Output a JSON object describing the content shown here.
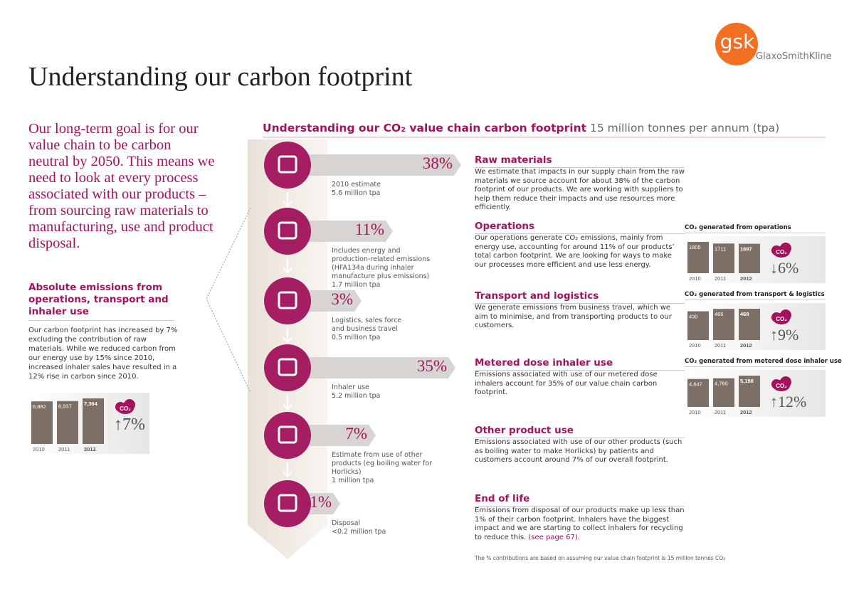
{
  "logo": {
    "mark": "gsk",
    "name": "GlaxoSmithKline"
  },
  "title": "Understanding our carbon footprint",
  "intro": "Our long-term goal is for our value chain to be carbon neutral by 2050. This means we need to look at every process associated with our products – from sourcing raw materials to manufacturing, use and product disposal.",
  "absolute": {
    "heading": "Absolute emissions from operations, transport and inhaler use",
    "body": "Our carbon footprint has increased by 7% excluding the contribution of raw materials. While we reduced carbon from our energy use by 15% since 2010, increased inhaler sales have resulted in a 12% rise in carbon since 2010.",
    "chart": {
      "years": [
        "2010",
        "2011",
        "2012"
      ],
      "values": [
        6882,
        6937,
        7364
      ],
      "value_labels": [
        "6,882",
        "6,937",
        "7,364"
      ],
      "badge": "CO₂",
      "change": "↑7%"
    }
  },
  "value_chain": {
    "title": "Understanding our CO₂ value chain carbon footprint",
    "subtitle": "15 million tonnes per annum (tpa)",
    "steps": [
      {
        "pct": "38%",
        "note": "2010 estimate\n5.6 million tpa",
        "heading": "Raw materials",
        "body": "We estimate that impacts in our supply chain from the raw materials we source account for about 38% of the carbon footprint of our products. We are working with suppliers to help them reduce their impacts and use resources more efficiently."
      },
      {
        "pct": "11%",
        "note": "Includes energy and production-related emissions (HFA134a during inhaler manufacture plus emissions)\n1.7 million tpa",
        "heading": "Operations",
        "body": "Our operations generate CO₂ emissions, mainly from energy use, accounting for around 11% of our products’ total carbon footprint. We are looking for ways to make our processes more efficient and use less energy."
      },
      {
        "pct": "3%",
        "note": "Logistics, sales force\nand business travel\n0.5 million tpa",
        "heading": "Transport and logistics",
        "body": "We generate emissions from business travel, which we aim to minimise, and from transporting products to our customers."
      },
      {
        "pct": "35%",
        "note": "Inhaler use\n5.2 million tpa",
        "heading": "Metered dose inhaler use",
        "body": "Emissions associated with use of our metered dose inhalers account for 35% of our value chain carbon footprint."
      },
      {
        "pct": "7%",
        "note": "Estimate from use of other products (eg boiling water for Horlicks)\n1 million tpa",
        "heading": "Other product use",
        "body": "Emissions associated with use of our other products (such as boiling water to make Horlicks) by patients and customers account around 7% of our overall footprint."
      },
      {
        "pct": "<1%",
        "note": "Disposal\n<0.2 million tpa",
        "heading": "End of life",
        "body": "Emissions from disposal of our products make up less than 1% of their carbon footprint. Inhalers have the biggest impact and we are starting to collect inhalers for recycling to reduce this.",
        "link": "(see page 67)."
      }
    ],
    "side_charts": [
      {
        "title": "CO₂ generated from operations",
        "years": [
          "2010",
          "2011",
          "2012"
        ],
        "values": [
          1805,
          1711,
          1697
        ],
        "badge": "CO₂",
        "change": "↓6%"
      },
      {
        "title": "CO₂ generated from transport & logistics",
        "years": [
          "2010",
          "2011",
          "2012"
        ],
        "values": [
          430,
          466,
          468
        ],
        "badge": "CO₂",
        "change": "↑9%"
      },
      {
        "title": "CO₂ generated from metered dose inhaler use",
        "years": [
          "2010",
          "2011",
          "2012"
        ],
        "values": [
          4647,
          4760,
          5198
        ],
        "value_labels": [
          "4,647",
          "4,760",
          "5,198"
        ],
        "badge": "CO₂",
        "change": "↑12%"
      }
    ],
    "footnote": "The % contributions are based on assuming our value chain footprint is 15 million tonnes CO₂"
  }
}
